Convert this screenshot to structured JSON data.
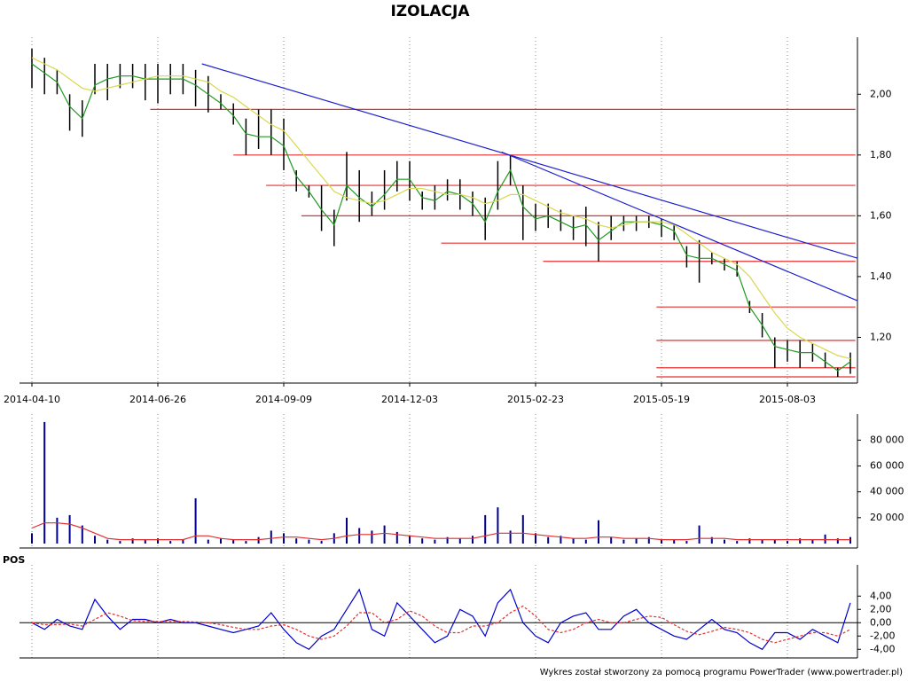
{
  "chart_data": [
    {
      "type": "hilo",
      "title": "IZOLACJA",
      "categories": [
        "2014-04-10",
        null,
        null,
        null,
        null,
        null,
        null,
        null,
        null,
        null,
        "2014-06-26",
        null,
        null,
        null,
        null,
        null,
        null,
        null,
        null,
        null,
        "2014-09-09",
        null,
        null,
        null,
        null,
        null,
        null,
        null,
        null,
        null,
        "2014-12-03",
        null,
        null,
        null,
        null,
        null,
        null,
        null,
        null,
        null,
        "2015-02-23",
        null,
        null,
        null,
        null,
        null,
        null,
        null,
        null,
        null,
        "2015-05-19",
        null,
        null,
        null,
        null,
        null,
        null,
        null,
        null,
        null,
        "2015-08-03",
        null,
        null,
        null,
        null,
        null
      ],
      "high": [
        2.15,
        2.12,
        2.08,
        2.0,
        1.98,
        2.1,
        2.1,
        2.1,
        2.1,
        2.1,
        2.1,
        2.1,
        2.1,
        2.08,
        2.06,
        2.0,
        1.97,
        1.92,
        1.95,
        1.95,
        1.92,
        1.75,
        1.7,
        1.7,
        1.62,
        1.81,
        1.75,
        1.68,
        1.75,
        1.78,
        1.78,
        1.68,
        1.7,
        1.72,
        1.72,
        1.68,
        1.66,
        1.78,
        1.8,
        1.7,
        1.64,
        1.64,
        1.62,
        1.6,
        1.63,
        1.58,
        1.6,
        1.6,
        1.6,
        1.6,
        1.59,
        1.57,
        1.5,
        1.52,
        1.48,
        1.46,
        1.45,
        1.32,
        1.28,
        1.2,
        1.19,
        1.19,
        1.18,
        1.15,
        1.1,
        1.15
      ],
      "low": [
        2.02,
        2.0,
        2.0,
        1.88,
        1.86,
        2.0,
        1.98,
        2.02,
        2.02,
        1.98,
        1.97,
        2.0,
        2.0,
        1.96,
        1.94,
        1.95,
        1.9,
        1.8,
        1.82,
        1.8,
        1.75,
        1.68,
        1.66,
        1.55,
        1.5,
        1.65,
        1.58,
        1.6,
        1.62,
        1.68,
        1.65,
        1.62,
        1.62,
        1.65,
        1.62,
        1.6,
        1.52,
        1.62,
        1.7,
        1.52,
        1.55,
        1.56,
        1.55,
        1.52,
        1.5,
        1.45,
        1.52,
        1.55,
        1.55,
        1.56,
        1.53,
        1.52,
        1.43,
        1.38,
        1.44,
        1.42,
        1.4,
        1.28,
        1.2,
        1.1,
        1.12,
        1.1,
        1.12,
        1.1,
        1.07,
        1.08
      ],
      "bar_color": "#000000",
      "lines": [
        {
          "color": "#1f9a1f",
          "values": [
            2.1,
            2.07,
            2.04,
            1.96,
            1.92,
            2.03,
            2.05,
            2.06,
            2.06,
            2.05,
            2.05,
            2.05,
            2.05,
            2.03,
            2.0,
            1.97,
            1.93,
            1.87,
            1.86,
            1.86,
            1.83,
            1.73,
            1.68,
            1.62,
            1.57,
            1.7,
            1.66,
            1.63,
            1.67,
            1.72,
            1.72,
            1.66,
            1.65,
            1.68,
            1.67,
            1.64,
            1.58,
            1.68,
            1.75,
            1.63,
            1.59,
            1.6,
            1.58,
            1.56,
            1.57,
            1.52,
            1.55,
            1.58,
            1.58,
            1.58,
            1.57,
            1.55,
            1.47,
            1.46,
            1.46,
            1.44,
            1.42,
            1.3,
            1.24,
            1.17,
            1.16,
            1.15,
            1.15,
            1.12,
            1.09,
            1.12
          ]
        },
        {
          "color": "#d8d850",
          "values": [
            2.12,
            2.1,
            2.08,
            2.05,
            2.02,
            2.01,
            2.02,
            2.03,
            2.04,
            2.05,
            2.06,
            2.06,
            2.06,
            2.05,
            2.04,
            2.01,
            1.99,
            1.96,
            1.93,
            1.9,
            1.88,
            1.83,
            1.78,
            1.73,
            1.68,
            1.66,
            1.65,
            1.64,
            1.65,
            1.67,
            1.69,
            1.69,
            1.68,
            1.67,
            1.67,
            1.66,
            1.64,
            1.65,
            1.67,
            1.67,
            1.65,
            1.63,
            1.61,
            1.6,
            1.59,
            1.57,
            1.56,
            1.57,
            1.58,
            1.58,
            1.58,
            1.57,
            1.54,
            1.51,
            1.48,
            1.46,
            1.44,
            1.4,
            1.34,
            1.28,
            1.23,
            1.2,
            1.18,
            1.16,
            1.14,
            1.13
          ]
        }
      ],
      "levels": [
        {
          "value": 1.95,
          "x": [
            9.4,
            65.4
          ]
        },
        {
          "value": 1.8,
          "x": [
            16,
            65.4
          ]
        },
        {
          "value": 1.7,
          "x": [
            18.6,
            65.4
          ]
        },
        {
          "value": 1.6,
          "x": [
            21.4,
            65.4
          ]
        },
        {
          "value": 1.51,
          "x": [
            32.5,
            65.4
          ]
        },
        {
          "value": 1.45,
          "x": [
            40.6,
            65.4
          ]
        },
        {
          "value": 1.3,
          "x": [
            49.6,
            65.4
          ]
        },
        {
          "value": 1.19,
          "x": [
            49.6,
            65.4
          ]
        },
        {
          "value": 1.1,
          "x": [
            49.6,
            65.4
          ]
        },
        {
          "value": 1.07,
          "x": [
            49.6,
            65.4
          ]
        }
      ],
      "level_color": "#e83030",
      "trendlines": [
        {
          "x": [
            13.5,
            65.6
          ],
          "y": [
            2.1,
            1.46
          ]
        },
        {
          "x": [
            37.3,
            65.6
          ],
          "y": [
            1.81,
            1.32
          ]
        }
      ],
      "trend_color": "#2020d0",
      "ylim": [
        1.07,
        2.17
      ],
      "yticks": [
        {
          "value": 1.2,
          "label": "1,20"
        },
        {
          "value": 1.4,
          "label": "1,40"
        },
        {
          "value": 1.6,
          "label": "1,60"
        },
        {
          "value": 1.8,
          "label": "1,80"
        },
        {
          "value": 2,
          "label": "2,00"
        }
      ],
      "grid": "x"
    },
    {
      "type": "bar",
      "values": [
        8000,
        94000,
        20000,
        22000,
        14000,
        6000,
        3000,
        2000,
        4000,
        3000,
        4000,
        2000,
        3000,
        35000,
        3000,
        4000,
        3000,
        2000,
        5000,
        10000,
        8000,
        4000,
        3000,
        2000,
        8000,
        20000,
        12000,
        10000,
        14000,
        9000,
        6000,
        4000,
        3000,
        5000,
        4000,
        6000,
        22000,
        28000,
        10000,
        22000,
        8000,
        5000,
        6000,
        4000,
        3000,
        18000,
        5000,
        3000,
        4000,
        5000,
        3000,
        3000,
        2000,
        14000,
        5000,
        3000,
        2000,
        4000,
        3000,
        3000,
        2000,
        4000,
        3000,
        7000,
        4000,
        5000
      ],
      "color": "#00008b",
      "lines": [
        {
          "color": "#e03030",
          "values": [
            12000,
            16000,
            16000,
            15000,
            12000,
            8000,
            4000,
            3000,
            3000,
            3000,
            3000,
            3000,
            3000,
            6000,
            6000,
            4000,
            3000,
            3000,
            3000,
            4000,
            5000,
            5000,
            4000,
            3000,
            4000,
            6000,
            7000,
            7000,
            8000,
            7000,
            6000,
            5000,
            4000,
            4000,
            4000,
            4000,
            6000,
            8000,
            8000,
            8000,
            7000,
            6000,
            5000,
            4000,
            4000,
            5000,
            5000,
            4000,
            4000,
            4000,
            3000,
            3000,
            3000,
            4000,
            4000,
            4000,
            3000,
            3000,
            3000,
            3000,
            3000,
            3000,
            3000,
            3000,
            3000,
            3000
          ]
        }
      ],
      "ylim": [
        0,
        96000
      ],
      "yticks": [
        {
          "value": 20000,
          "label": "20 000"
        },
        {
          "value": 40000,
          "label": "40 000"
        },
        {
          "value": 60000,
          "label": "60 000"
        },
        {
          "value": 80000,
          "label": "80 000"
        }
      ],
      "grid": "x"
    },
    {
      "type": "line",
      "title": "POS",
      "series": [
        {
          "color": "#0000cc",
          "values": [
            0,
            -1,
            0.5,
            -0.5,
            -1,
            3.5,
            1,
            -1,
            0.5,
            0.5,
            0,
            0.5,
            0,
            0,
            -0.5,
            -1,
            -1.5,
            -1,
            -0.5,
            1.5,
            -1,
            -3,
            -4,
            -2,
            -1,
            2,
            5,
            -1,
            -2,
            3,
            1,
            -1,
            -3,
            -2,
            2,
            1,
            -2,
            3,
            5,
            0,
            -2,
            -3,
            0,
            1,
            1.5,
            -1,
            -1,
            1,
            2,
            0,
            -1,
            -2,
            -2.5,
            -1,
            0.5,
            -1,
            -1.5,
            -3,
            -4,
            -1.5,
            -1.5,
            -2.5,
            -1,
            -2,
            -3,
            3
          ]
        },
        {
          "color": "#e03030",
          "dash": true,
          "values": [
            0,
            -0.3,
            -0.3,
            -0.2,
            -0.5,
            0.5,
            1.5,
            1,
            0.3,
            0.2,
            0.2,
            0.2,
            0.2,
            0.1,
            0,
            -0.3,
            -0.7,
            -1,
            -1,
            -0.5,
            -0.3,
            -1,
            -2,
            -2.5,
            -2,
            -0.5,
            1.5,
            1.5,
            0,
            0.5,
            1.8,
            1,
            -0.5,
            -1.5,
            -1.5,
            -0.5,
            -0.5,
            0,
            1.5,
            2.5,
            1,
            -1,
            -1.5,
            -1,
            0,
            0.5,
            0,
            0,
            0.5,
            1,
            0.8,
            -0.3,
            -1.3,
            -1.8,
            -1.3,
            -0.7,
            -1,
            -1.5,
            -2.5,
            -3,
            -2.5,
            -2,
            -1.5,
            -1.5,
            -2,
            -1
          ]
        }
      ],
      "zero_line": true,
      "ylim": [
        -5.3,
        7.9
      ],
      "yticks": [
        {
          "value": -4,
          "label": "-4,00"
        },
        {
          "value": -2,
          "label": "-2,00"
        },
        {
          "value": 0,
          "label": "0,00"
        },
        {
          "value": 2,
          "label": "2,00"
        },
        {
          "value": 4,
          "label": "4,00"
        }
      ],
      "grid": "x"
    }
  ],
  "footer": "Wykres został stworzony za pomocą programu PowerTrader (www.powertrader.pl)"
}
